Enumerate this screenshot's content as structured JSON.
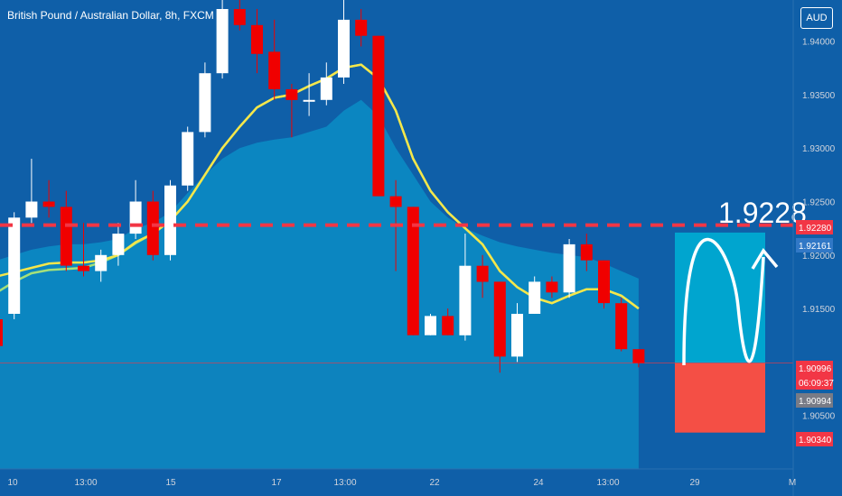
{
  "header": {
    "title": "British Pound / Australian Dollar, 8h, FXCM",
    "currency_button": "AUD"
  },
  "chart_data": {
    "type": "candlestick",
    "title": "British Pound / Australian Dollar, 8h, FXCM",
    "ylim": [
      1.9,
      1.943
    ],
    "y_ticks": [
      "1.94000",
      "1.93500",
      "1.93000",
      "1.92500",
      "1.92000",
      "1.91500",
      "1.90500"
    ],
    "x_ticks": [
      "10",
      "13:00",
      "15",
      "17",
      "13:00",
      "22",
      "24",
      "13:00",
      "29",
      "M"
    ],
    "candles": [
      {
        "o": 1.914,
        "h": 1.9155,
        "l": 1.911,
        "c": 1.9115
      },
      {
        "o": 1.9145,
        "h": 1.924,
        "l": 1.914,
        "c": 1.9235
      },
      {
        "o": 1.9235,
        "h": 1.929,
        "l": 1.923,
        "c": 1.925
      },
      {
        "o": 1.925,
        "h": 1.927,
        "l": 1.9235,
        "c": 1.9245
      },
      {
        "o": 1.9245,
        "h": 1.926,
        "l": 1.9185,
        "c": 1.919
      },
      {
        "o": 1.919,
        "h": 1.923,
        "l": 1.918,
        "c": 1.9185
      },
      {
        "o": 1.9185,
        "h": 1.9205,
        "l": 1.9175,
        "c": 1.92
      },
      {
        "o": 1.92,
        "h": 1.923,
        "l": 1.919,
        "c": 1.922
      },
      {
        "o": 1.922,
        "h": 1.927,
        "l": 1.9215,
        "c": 1.925
      },
      {
        "o": 1.925,
        "h": 1.926,
        "l": 1.9195,
        "c": 1.92
      },
      {
        "o": 1.92,
        "h": 1.927,
        "l": 1.9195,
        "c": 1.9265
      },
      {
        "o": 1.9265,
        "h": 1.932,
        "l": 1.926,
        "c": 1.9315
      },
      {
        "o": 1.9315,
        "h": 1.938,
        "l": 1.931,
        "c": 1.937
      },
      {
        "o": 1.937,
        "h": 1.944,
        "l": 1.9365,
        "c": 1.943
      },
      {
        "o": 1.943,
        "h": 1.944,
        "l": 1.941,
        "c": 1.9415
      },
      {
        "o": 1.9415,
        "h": 1.943,
        "l": 1.937,
        "c": 1.9388
      },
      {
        "o": 1.939,
        "h": 1.942,
        "l": 1.9345,
        "c": 1.9355
      },
      {
        "o": 1.9355,
        "h": 1.936,
        "l": 1.931,
        "c": 1.9345
      },
      {
        "o": 1.9345,
        "h": 1.937,
        "l": 1.933,
        "c": 1.9345
      },
      {
        "o": 1.9345,
        "h": 1.938,
        "l": 1.934,
        "c": 1.9366
      },
      {
        "o": 1.9366,
        "h": 1.944,
        "l": 1.936,
        "c": 1.942
      },
      {
        "o": 1.942,
        "h": 1.943,
        "l": 1.9395,
        "c": 1.9405
      },
      {
        "o": 1.9405,
        "h": 1.9405,
        "l": 1.9255,
        "c": 1.9255
      },
      {
        "o": 1.9255,
        "h": 1.927,
        "l": 1.9185,
        "c": 1.9245
      },
      {
        "o": 1.9245,
        "h": 1.9245,
        "l": 1.9125,
        "c": 1.9125
      },
      {
        "o": 1.9125,
        "h": 1.9145,
        "l": 1.9125,
        "c": 1.9143
      },
      {
        "o": 1.9143,
        "h": 1.915,
        "l": 1.9125,
        "c": 1.9125
      },
      {
        "o": 1.9125,
        "h": 1.922,
        "l": 1.912,
        "c": 1.919
      },
      {
        "o": 1.919,
        "h": 1.92,
        "l": 1.916,
        "c": 1.9175
      },
      {
        "o": 1.9175,
        "h": 1.9175,
        "l": 1.909,
        "c": 1.9105
      },
      {
        "o": 1.9105,
        "h": 1.9155,
        "l": 1.91,
        "c": 1.9145
      },
      {
        "o": 1.9145,
        "h": 1.918,
        "l": 1.9145,
        "c": 1.9175
      },
      {
        "o": 1.9175,
        "h": 1.918,
        "l": 1.916,
        "c": 1.9165
      },
      {
        "o": 1.9165,
        "h": 1.9215,
        "l": 1.916,
        "c": 1.921
      },
      {
        "o": 1.921,
        "h": 1.922,
        "l": 1.9185,
        "c": 1.9195
      },
      {
        "o": 1.9195,
        "h": 1.9195,
        "l": 1.915,
        "c": 1.9155
      },
      {
        "o": 1.9155,
        "h": 1.916,
        "l": 1.911,
        "c": 1.9112
      },
      {
        "o": 1.9112,
        "h": 1.9112,
        "l": 1.9095,
        "c": 1.9099
      }
    ],
    "ema_yellow": [
      1.918,
      1.9184,
      1.9188,
      1.9192,
      1.9193,
      1.9193,
      1.9195,
      1.92,
      1.9212,
      1.922,
      1.9232,
      1.925,
      1.9275,
      1.93,
      1.932,
      1.9338,
      1.9347,
      1.935,
      1.9358,
      1.9365,
      1.9375,
      1.9378,
      1.9365,
      1.9335,
      1.929,
      1.926,
      1.924,
      1.9225,
      1.921,
      1.9185,
      1.917,
      1.916,
      1.9155,
      1.9162,
      1.9168,
      1.9168,
      1.9162,
      1.915
    ],
    "sma_green": [
      1.9165,
      1.9175,
      1.9183,
      1.9186,
      1.9187,
      1.9188,
      1.9193,
      1.92,
      1.9211,
      1.922,
      1.9232,
      1.925,
      1.9275,
      1.93,
      1.932,
      1.9338,
      1.9347,
      1.935,
      1.9358,
      1.9365,
      1.9375,
      1.9378,
      1.9365,
      1.9335,
      1.929,
      1.926,
      1.924,
      1.9225,
      1.921,
      1.9185,
      1.917,
      1.916,
      1.9155,
      1.9162,
      1.9168,
      1.9168,
      1.9162,
      1.915
    ],
    "area_upper": [
      1.9195,
      1.92,
      1.9205,
      1.9208,
      1.921,
      1.921,
      1.9212,
      1.9215,
      1.9225,
      1.923,
      1.924,
      1.9258,
      1.9275,
      1.929,
      1.93,
      1.9305,
      1.9308,
      1.931,
      1.9315,
      1.932,
      1.9335,
      1.9345,
      1.933,
      1.93,
      1.9275,
      1.925,
      1.9235,
      1.9225,
      1.9218,
      1.9212,
      1.9208,
      1.9205,
      1.9202,
      1.92,
      1.9198,
      1.9192,
      1.9185,
      1.9178
    ],
    "target_label": "1.9228",
    "target_price": 1.9228,
    "take_profit": 1.9221,
    "stop_loss": 1.9034,
    "entry": 1.9099,
    "price_labels": [
      {
        "text": "1.92280",
        "color": "#f23645",
        "y": 1.9228
      },
      {
        "text": "1.92161",
        "color": "#3178c6",
        "y": 1.92161
      },
      {
        "text": "1.90996",
        "color": "#f23645",
        "y": 1.90996
      },
      {
        "text": "06:09:37",
        "color": "#f23645",
        "y": 1.90996
      },
      {
        "text": "1.90994",
        "color": "#787b86",
        "y": 1.90994
      },
      {
        "text": "1.90340",
        "color": "#f23645",
        "y": 1.9034
      }
    ],
    "colors": {
      "background": "#0f5fa8",
      "area": "#0b86c1",
      "area_lower": "#127fbb",
      "bull": "#ffffff",
      "bear": "#f00000",
      "ema": "#f5e64a",
      "sma": "#a4e07a",
      "target_line": "#f23645",
      "profit_zone": "#00a5cf",
      "loss_zone": "#f44f45"
    }
  }
}
